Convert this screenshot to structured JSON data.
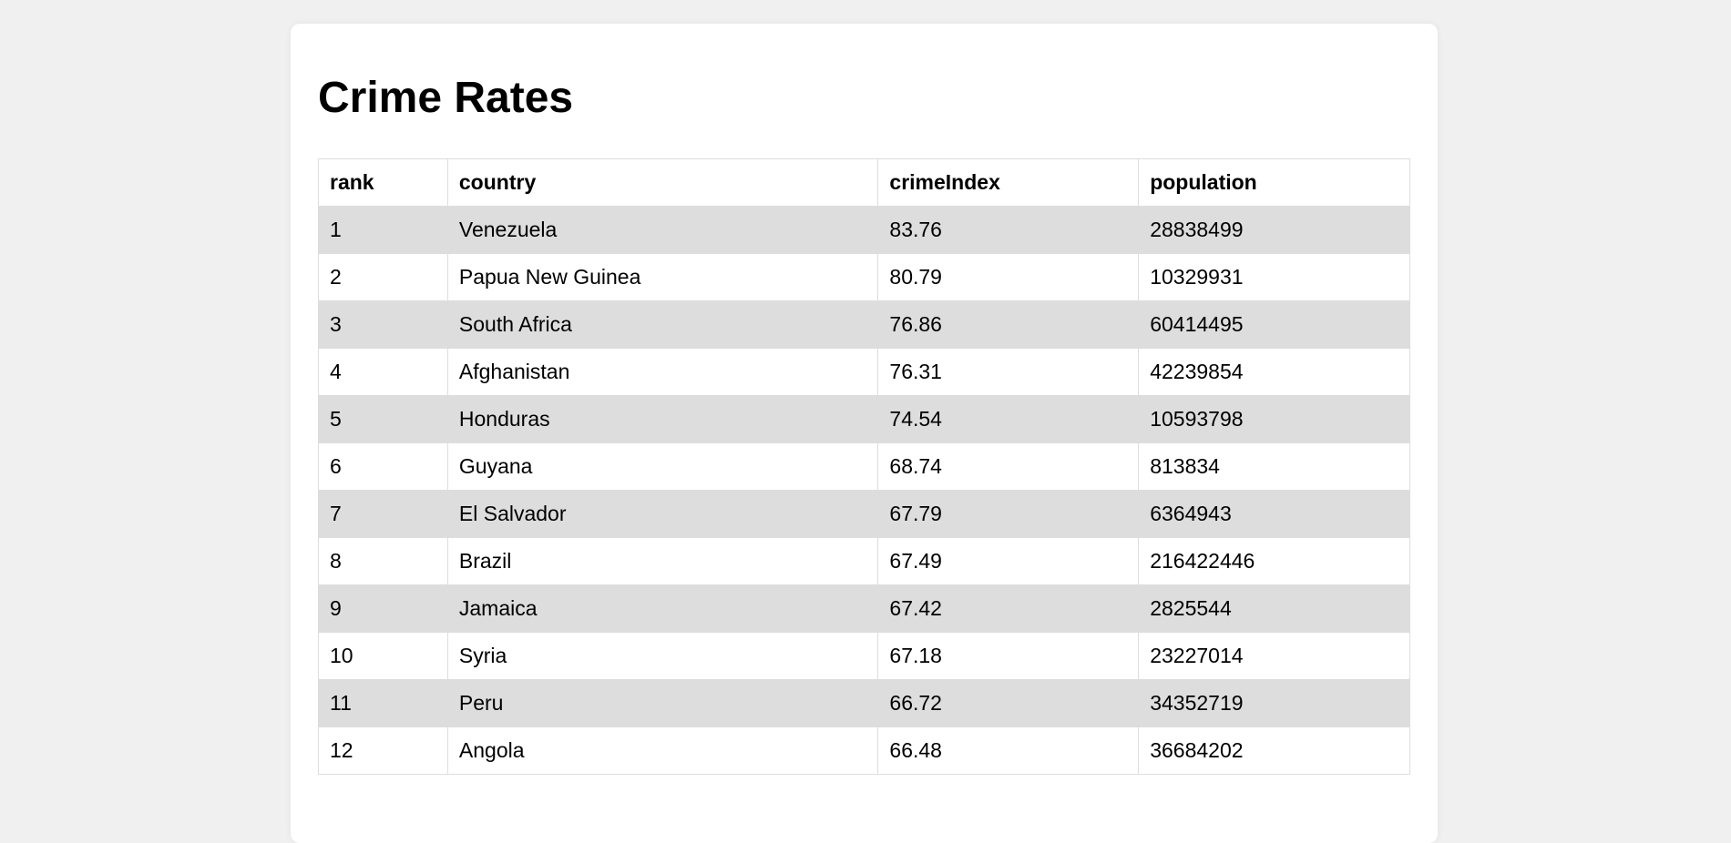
{
  "page": {
    "title": "Crime Rates"
  },
  "table": {
    "headers": [
      "rank",
      "country",
      "crimeIndex",
      "population"
    ],
    "rows": [
      {
        "rank": "1",
        "country": "Venezuela",
        "crimeIndex": "83.76",
        "population": "28838499"
      },
      {
        "rank": "2",
        "country": "Papua New Guinea",
        "crimeIndex": "80.79",
        "population": "10329931"
      },
      {
        "rank": "3",
        "country": "South Africa",
        "crimeIndex": "76.86",
        "population": "60414495"
      },
      {
        "rank": "4",
        "country": "Afghanistan",
        "crimeIndex": "76.31",
        "population": "42239854"
      },
      {
        "rank": "5",
        "country": "Honduras",
        "crimeIndex": "74.54",
        "population": "10593798"
      },
      {
        "rank": "6",
        "country": "Guyana",
        "crimeIndex": "68.74",
        "population": "813834"
      },
      {
        "rank": "7",
        "country": "El Salvador",
        "crimeIndex": "67.79",
        "population": "6364943"
      },
      {
        "rank": "8",
        "country": "Brazil",
        "crimeIndex": "67.49",
        "population": "216422446"
      },
      {
        "rank": "9",
        "country": "Jamaica",
        "crimeIndex": "67.42",
        "population": "2825544"
      },
      {
        "rank": "10",
        "country": "Syria",
        "crimeIndex": "67.18",
        "population": "23227014"
      },
      {
        "rank": "11",
        "country": "Peru",
        "crimeIndex": "66.72",
        "population": "34352719"
      },
      {
        "rank": "12",
        "country": "Angola",
        "crimeIndex": "66.48",
        "population": "36684202"
      }
    ]
  },
  "colors": {
    "page_background": "#f0f0f0",
    "card_background": "#ffffff",
    "stripe_row": "#dddddd",
    "border": "#dddddd"
  }
}
